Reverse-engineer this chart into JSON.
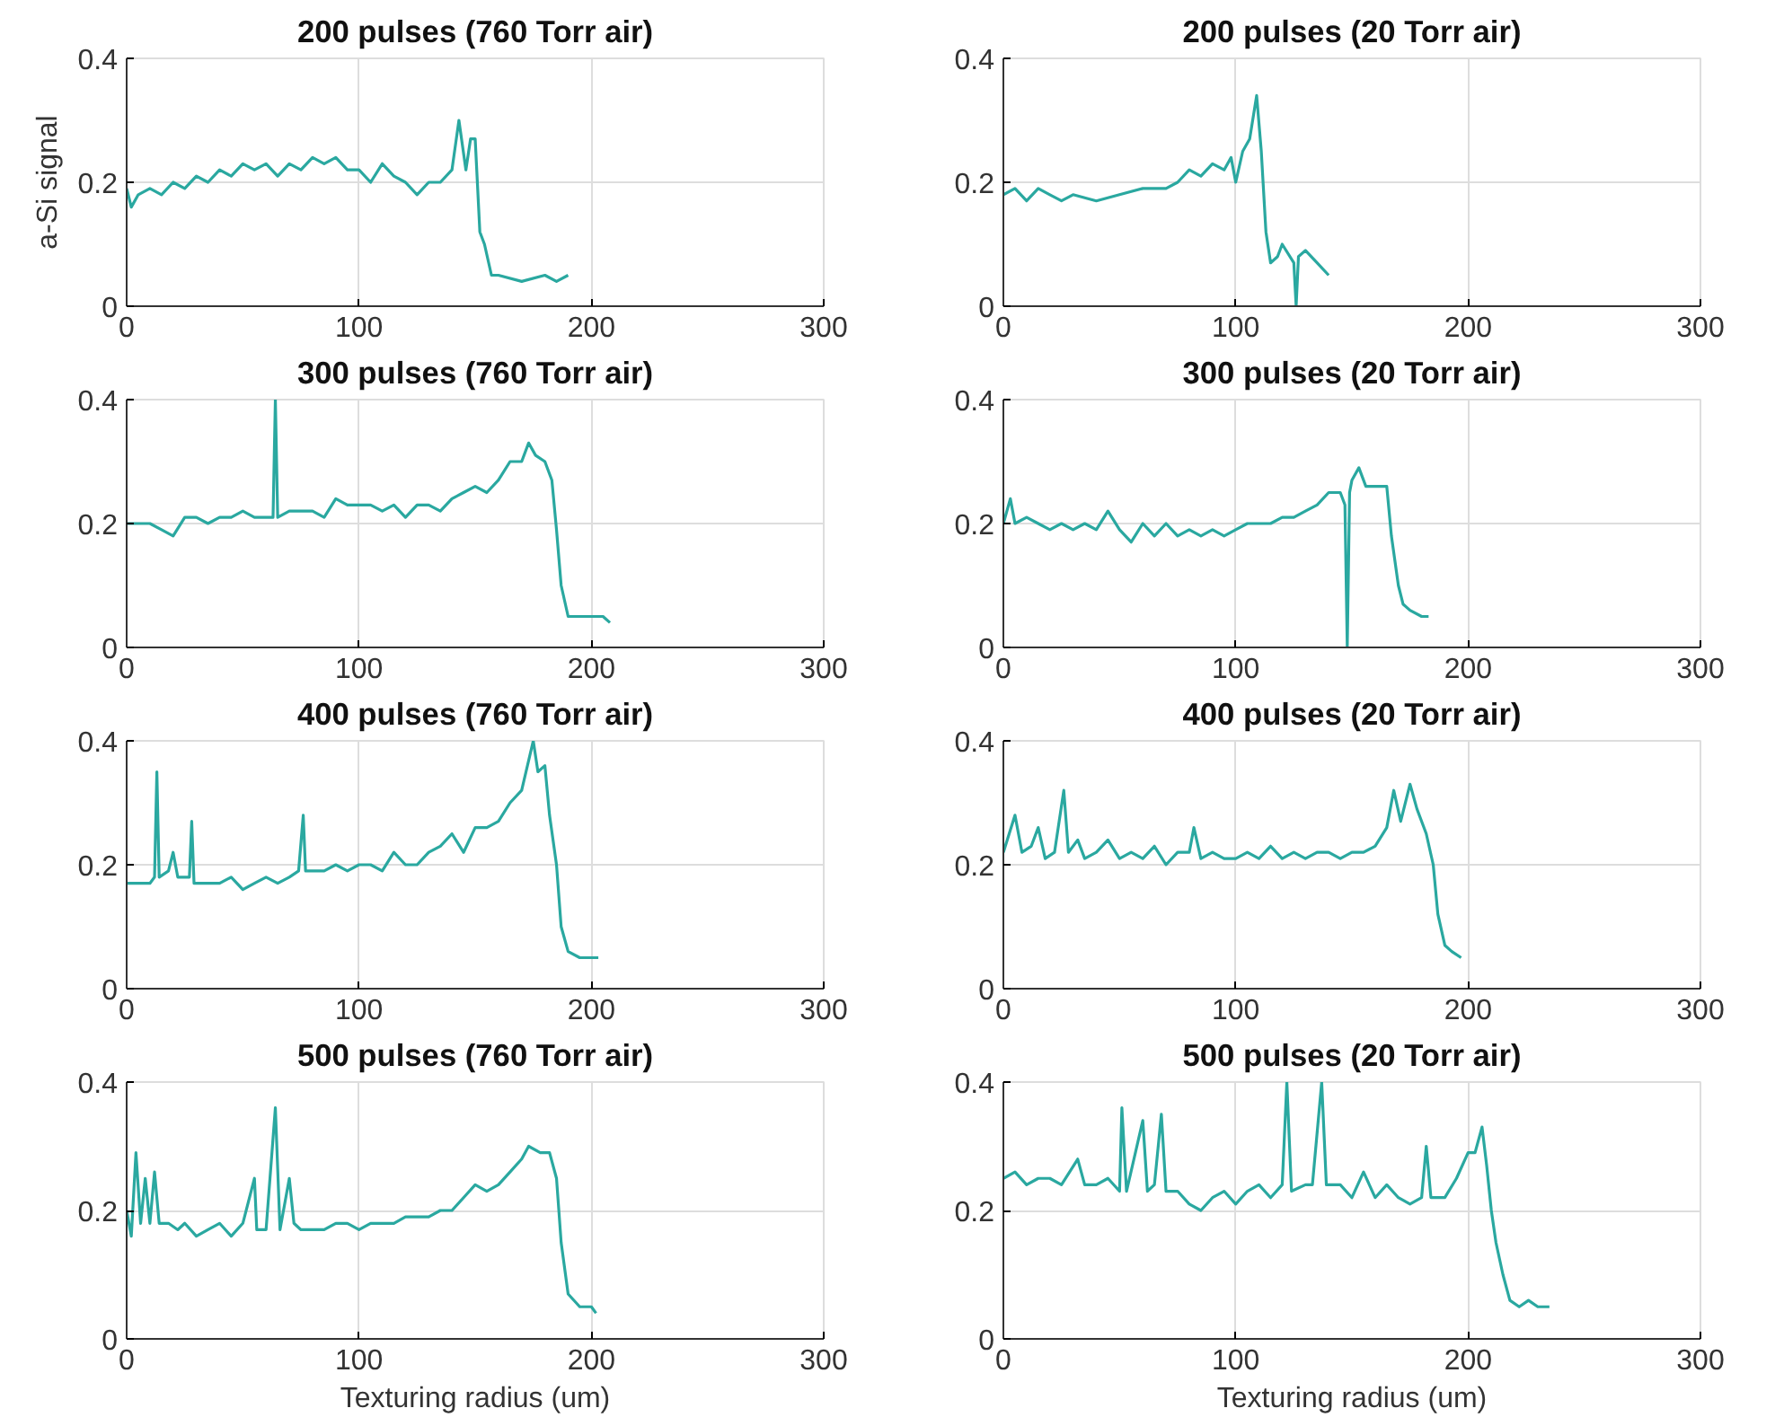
{
  "chart_data": [
    {
      "type": "line",
      "title": "200 pulses (760 Torr air)",
      "ylabel": "a-Si signal",
      "xlim": [
        0,
        300
      ],
      "ylim": [
        0,
        0.4
      ],
      "xticks": [
        0,
        100,
        200,
        300
      ],
      "yticks": [
        0,
        0.2,
        0.4
      ],
      "grid": true,
      "series": [
        {
          "color": "#2aa8a0",
          "x": [
            0,
            2,
            5,
            10,
            15,
            20,
            25,
            30,
            35,
            40,
            45,
            50,
            55,
            60,
            65,
            70,
            75,
            80,
            85,
            90,
            95,
            100,
            105,
            110,
            115,
            120,
            125,
            130,
            135,
            140,
            143,
            146,
            148,
            150,
            152,
            154,
            157,
            160,
            170,
            180,
            185,
            190
          ],
          "values": [
            0.19,
            0.16,
            0.18,
            0.19,
            0.18,
            0.2,
            0.19,
            0.21,
            0.2,
            0.22,
            0.21,
            0.23,
            0.22,
            0.23,
            0.21,
            0.23,
            0.22,
            0.24,
            0.23,
            0.24,
            0.22,
            0.22,
            0.2,
            0.23,
            0.21,
            0.2,
            0.18,
            0.2,
            0.2,
            0.22,
            0.3,
            0.22,
            0.27,
            0.27,
            0.12,
            0.1,
            0.05,
            0.05,
            0.04,
            0.05,
            0.04,
            0.05
          ]
        }
      ]
    },
    {
      "type": "line",
      "title": "200 pulses (20 Torr air)",
      "xlim": [
        0,
        300
      ],
      "ylim": [
        0,
        0.4
      ],
      "xticks": [
        0,
        100,
        200,
        300
      ],
      "yticks": [
        0,
        0.2,
        0.4
      ],
      "grid": true,
      "series": [
        {
          "color": "#2aa8a0",
          "x": [
            0,
            5,
            10,
            15,
            20,
            25,
            30,
            40,
            50,
            60,
            70,
            75,
            80,
            85,
            90,
            95,
            98,
            100,
            103,
            106,
            109,
            111,
            113,
            115,
            118,
            120,
            125,
            126,
            127,
            130,
            135,
            140
          ],
          "values": [
            0.18,
            0.19,
            0.17,
            0.19,
            0.18,
            0.17,
            0.18,
            0.17,
            0.18,
            0.19,
            0.19,
            0.2,
            0.22,
            0.21,
            0.23,
            0.22,
            0.24,
            0.2,
            0.25,
            0.27,
            0.34,
            0.25,
            0.12,
            0.07,
            0.08,
            0.1,
            0.07,
            0.0,
            0.08,
            0.09,
            0.07,
            0.05
          ]
        }
      ]
    },
    {
      "type": "line",
      "title": "300 pulses (760 Torr air)",
      "xlim": [
        0,
        300
      ],
      "ylim": [
        0,
        0.4
      ],
      "xticks": [
        0,
        100,
        200,
        300
      ],
      "yticks": [
        0,
        0.2,
        0.4
      ],
      "grid": true,
      "series": [
        {
          "color": "#2aa8a0",
          "x": [
            0,
            5,
            10,
            15,
            20,
            25,
            30,
            35,
            40,
            45,
            50,
            55,
            60,
            63,
            64,
            65,
            70,
            75,
            80,
            85,
            90,
            95,
            100,
            105,
            110,
            115,
            120,
            125,
            130,
            135,
            140,
            145,
            150,
            155,
            160,
            165,
            170,
            173,
            176,
            180,
            183,
            185,
            187,
            190,
            195,
            200,
            205,
            208
          ],
          "values": [
            0.2,
            0.2,
            0.2,
            0.19,
            0.18,
            0.21,
            0.21,
            0.2,
            0.21,
            0.21,
            0.22,
            0.21,
            0.21,
            0.21,
            0.4,
            0.21,
            0.22,
            0.22,
            0.22,
            0.21,
            0.24,
            0.23,
            0.23,
            0.23,
            0.22,
            0.23,
            0.21,
            0.23,
            0.23,
            0.22,
            0.24,
            0.25,
            0.26,
            0.25,
            0.27,
            0.3,
            0.3,
            0.33,
            0.31,
            0.3,
            0.27,
            0.19,
            0.1,
            0.05,
            0.05,
            0.05,
            0.05,
            0.04
          ]
        }
      ]
    },
    {
      "type": "line",
      "title": "300 pulses (20 Torr air)",
      "xlim": [
        0,
        300
      ],
      "ylim": [
        0,
        0.4
      ],
      "xticks": [
        0,
        100,
        200,
        300
      ],
      "yticks": [
        0,
        0.2,
        0.4
      ],
      "grid": true,
      "series": [
        {
          "color": "#2aa8a0",
          "x": [
            0,
            3,
            5,
            10,
            15,
            20,
            25,
            30,
            35,
            40,
            45,
            50,
            55,
            60,
            65,
            70,
            75,
            80,
            85,
            90,
            95,
            100,
            105,
            110,
            115,
            120,
            125,
            130,
            135,
            140,
            145,
            147,
            148,
            149,
            150,
            153,
            156,
            160,
            165,
            167,
            170,
            172,
            175,
            180,
            183
          ],
          "values": [
            0.2,
            0.24,
            0.2,
            0.21,
            0.2,
            0.19,
            0.2,
            0.19,
            0.2,
            0.19,
            0.22,
            0.19,
            0.17,
            0.2,
            0.18,
            0.2,
            0.18,
            0.19,
            0.18,
            0.19,
            0.18,
            0.19,
            0.2,
            0.2,
            0.2,
            0.21,
            0.21,
            0.22,
            0.23,
            0.25,
            0.25,
            0.23,
            0.0,
            0.25,
            0.27,
            0.29,
            0.26,
            0.26,
            0.26,
            0.18,
            0.1,
            0.07,
            0.06,
            0.05,
            0.05
          ]
        }
      ]
    },
    {
      "type": "line",
      "title": "400 pulses (760 Torr air)",
      "xlim": [
        0,
        300
      ],
      "ylim": [
        0,
        0.4
      ],
      "xticks": [
        0,
        100,
        200,
        300
      ],
      "yticks": [
        0,
        0.2,
        0.4
      ],
      "grid": true,
      "series": [
        {
          "color": "#2aa8a0",
          "x": [
            0,
            5,
            10,
            12,
            13,
            14,
            18,
            20,
            22,
            27,
            28,
            29,
            35,
            40,
            45,
            50,
            55,
            60,
            65,
            70,
            74,
            76,
            77,
            80,
            85,
            90,
            95,
            100,
            105,
            110,
            115,
            120,
            125,
            130,
            135,
            140,
            145,
            150,
            155,
            160,
            165,
            170,
            175,
            177,
            180,
            182,
            185,
            187,
            190,
            195,
            200,
            203
          ],
          "values": [
            0.17,
            0.17,
            0.17,
            0.18,
            0.35,
            0.18,
            0.19,
            0.22,
            0.18,
            0.18,
            0.27,
            0.17,
            0.17,
            0.17,
            0.18,
            0.16,
            0.17,
            0.18,
            0.17,
            0.18,
            0.19,
            0.28,
            0.19,
            0.19,
            0.19,
            0.2,
            0.19,
            0.2,
            0.2,
            0.19,
            0.22,
            0.2,
            0.2,
            0.22,
            0.23,
            0.25,
            0.22,
            0.26,
            0.26,
            0.27,
            0.3,
            0.32,
            0.4,
            0.35,
            0.36,
            0.28,
            0.2,
            0.1,
            0.06,
            0.05,
            0.05,
            0.05
          ]
        }
      ]
    },
    {
      "type": "line",
      "title": "400 pulses (20 Torr air)",
      "xlim": [
        0,
        300
      ],
      "ylim": [
        0,
        0.4
      ],
      "xticks": [
        0,
        100,
        200,
        300
      ],
      "yticks": [
        0,
        0.2,
        0.4
      ],
      "grid": true,
      "series": [
        {
          "color": "#2aa8a0",
          "x": [
            0,
            5,
            8,
            12,
            15,
            18,
            22,
            26,
            28,
            32,
            35,
            40,
            45,
            50,
            55,
            60,
            65,
            70,
            75,
            80,
            82,
            85,
            90,
            95,
            100,
            105,
            110,
            115,
            120,
            125,
            130,
            135,
            140,
            145,
            150,
            155,
            160,
            165,
            168,
            171,
            175,
            178,
            182,
            185,
            187,
            190,
            193,
            197
          ],
          "values": [
            0.22,
            0.28,
            0.22,
            0.23,
            0.26,
            0.21,
            0.22,
            0.32,
            0.22,
            0.24,
            0.21,
            0.22,
            0.24,
            0.21,
            0.22,
            0.21,
            0.23,
            0.2,
            0.22,
            0.22,
            0.26,
            0.21,
            0.22,
            0.21,
            0.21,
            0.22,
            0.21,
            0.23,
            0.21,
            0.22,
            0.21,
            0.22,
            0.22,
            0.21,
            0.22,
            0.22,
            0.23,
            0.26,
            0.32,
            0.27,
            0.33,
            0.29,
            0.25,
            0.2,
            0.12,
            0.07,
            0.06,
            0.05
          ]
        }
      ]
    },
    {
      "type": "line",
      "title": "500 pulses (760 Torr air)",
      "xlabel": "Texturing radius (um)",
      "xlim": [
        0,
        300
      ],
      "ylim": [
        0,
        0.4
      ],
      "xticks": [
        0,
        100,
        200,
        300
      ],
      "yticks": [
        0,
        0.2,
        0.4
      ],
      "grid": true,
      "series": [
        {
          "color": "#2aa8a0",
          "x": [
            0,
            2,
            4,
            6,
            8,
            10,
            12,
            14,
            18,
            22,
            25,
            30,
            35,
            40,
            45,
            50,
            55,
            56,
            60,
            64,
            66,
            70,
            72,
            75,
            80,
            85,
            90,
            95,
            100,
            105,
            110,
            115,
            120,
            125,
            130,
            135,
            140,
            145,
            150,
            155,
            160,
            165,
            170,
            173,
            178,
            182,
            185,
            187,
            190,
            195,
            200,
            202
          ],
          "values": [
            0.2,
            0.16,
            0.29,
            0.18,
            0.25,
            0.18,
            0.26,
            0.18,
            0.18,
            0.17,
            0.18,
            0.16,
            0.17,
            0.18,
            0.16,
            0.18,
            0.25,
            0.17,
            0.17,
            0.36,
            0.17,
            0.25,
            0.18,
            0.17,
            0.17,
            0.17,
            0.18,
            0.18,
            0.17,
            0.18,
            0.18,
            0.18,
            0.19,
            0.19,
            0.19,
            0.2,
            0.2,
            0.22,
            0.24,
            0.23,
            0.24,
            0.26,
            0.28,
            0.3,
            0.29,
            0.29,
            0.25,
            0.15,
            0.07,
            0.05,
            0.05,
            0.04
          ]
        }
      ]
    },
    {
      "type": "line",
      "title": "500 pulses (20 Torr air)",
      "xlabel": "Texturing radius (um)",
      "xlim": [
        0,
        300
      ],
      "ylim": [
        0,
        0.4
      ],
      "xticks": [
        0,
        100,
        200,
        300
      ],
      "yticks": [
        0,
        0.2,
        0.4
      ],
      "grid": true,
      "series": [
        {
          "color": "#2aa8a0",
          "x": [
            0,
            5,
            10,
            15,
            20,
            25,
            32,
            35,
            40,
            45,
            50,
            51,
            53,
            60,
            62,
            65,
            68,
            70,
            75,
            80,
            85,
            90,
            95,
            100,
            105,
            110,
            115,
            120,
            122,
            124,
            130,
            133,
            137,
            139,
            145,
            150,
            155,
            160,
            165,
            170,
            175,
            180,
            182,
            184,
            190,
            195,
            200,
            203,
            206,
            208,
            210,
            212,
            215,
            218,
            222,
            226,
            230,
            235
          ],
          "values": [
            0.25,
            0.26,
            0.24,
            0.25,
            0.25,
            0.24,
            0.28,
            0.24,
            0.24,
            0.25,
            0.23,
            0.36,
            0.23,
            0.34,
            0.23,
            0.24,
            0.35,
            0.23,
            0.23,
            0.21,
            0.2,
            0.22,
            0.23,
            0.21,
            0.23,
            0.24,
            0.22,
            0.24,
            0.4,
            0.23,
            0.24,
            0.24,
            0.4,
            0.24,
            0.24,
            0.22,
            0.26,
            0.22,
            0.24,
            0.22,
            0.21,
            0.22,
            0.3,
            0.22,
            0.22,
            0.25,
            0.29,
            0.29,
            0.33,
            0.27,
            0.2,
            0.15,
            0.1,
            0.06,
            0.05,
            0.06,
            0.05,
            0.05
          ]
        }
      ]
    }
  ]
}
